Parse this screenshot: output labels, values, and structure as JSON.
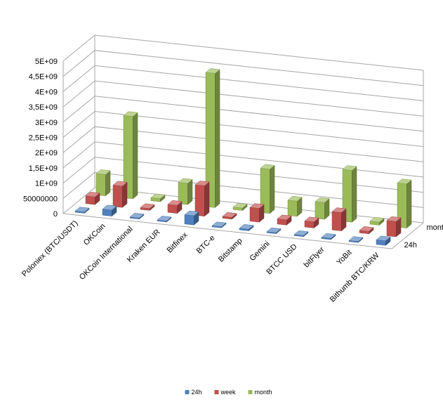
{
  "chart_data": {
    "type": "bar",
    "categories": [
      "Poloniex (BTC/USDT)",
      "OKCoin",
      "OKCoin International",
      "Kraken EUR",
      "Bitfinex",
      "BTC-e",
      "Bitstamp",
      "Gemini",
      "BTCC USD",
      "bitFlyer",
      "YoBit",
      "Bithumb BTC/KRW"
    ],
    "series": [
      {
        "name": "24h",
        "values": [
          40000000,
          200000000,
          15000000,
          20000000,
          300000000,
          15000000,
          50000000,
          15000000,
          25000000,
          40000000,
          30000000,
          150000000
        ]
      },
      {
        "name": "week",
        "values": [
          250000000,
          700000000,
          60000000,
          260000000,
          1000000000,
          60000000,
          450000000,
          170000000,
          200000000,
          600000000,
          80000000,
          500000000
        ]
      },
      {
        "name": "month",
        "values": [
          700000000,
          2700000000,
          100000000,
          700000000,
          4400000000,
          80000000,
          1450000000,
          500000000,
          550000000,
          1700000000,
          100000000,
          1450000000
        ]
      }
    ],
    "depth_labels": [
      "24h",
      "month"
    ],
    "yticks": [
      "0",
      "50000000",
      "1E+09",
      "1,5E+09",
      "2E+09",
      "2,5E+09",
      "3E+09",
      "3,5E+09",
      "4E+09",
      "4,5E+09",
      "5E+09"
    ],
    "ylim": [
      0,
      5000000000
    ],
    "grid": true,
    "legend_position": "bottom",
    "colors": {
      "24h": "#4f81bd",
      "week": "#c0504d",
      "month": "#9bbb59",
      "grid": "#a6a6a6",
      "text": "#000000"
    }
  }
}
